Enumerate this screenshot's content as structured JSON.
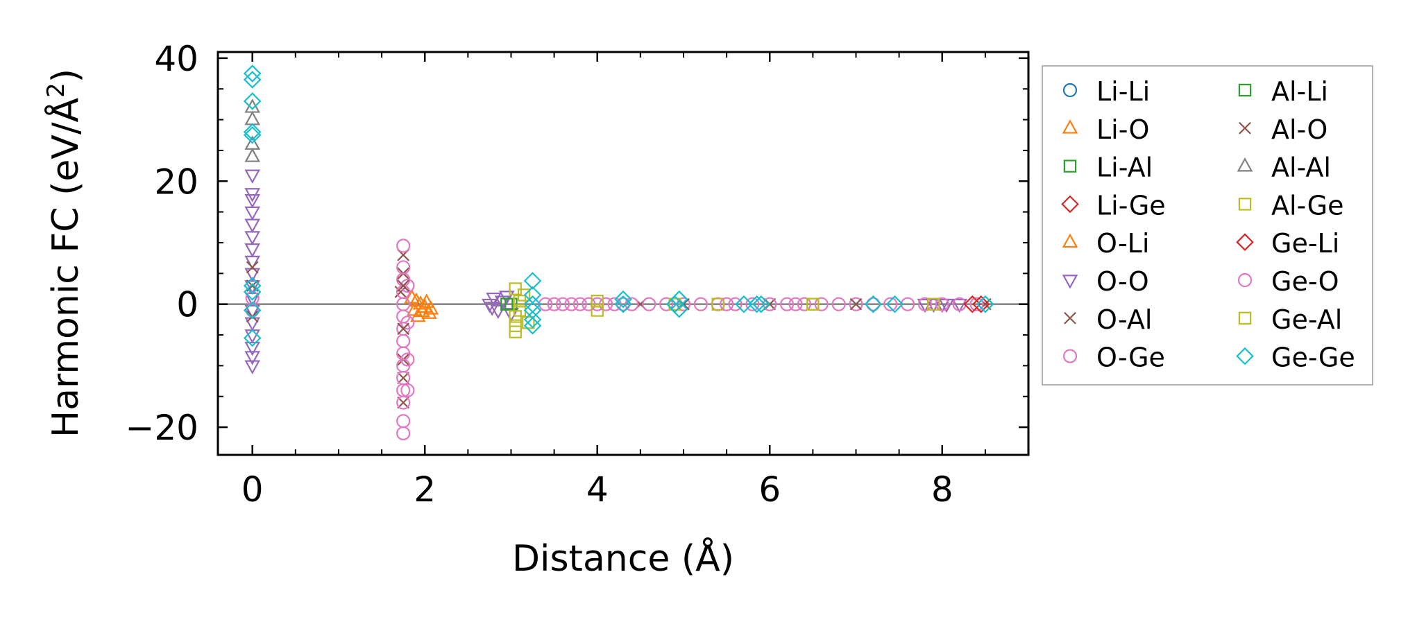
{
  "chart_data": {
    "type": "scatter",
    "xlabel": "Distance (Å)",
    "ylabel_main": "Harmonic FC (eV/Å",
    "ylabel_sup": "2",
    "ylabel_close": ")",
    "xlim": [
      -0.4,
      9.0
    ],
    "ylim": [
      -24.5,
      41
    ],
    "x_ticks": [
      0,
      2,
      4,
      6,
      8
    ],
    "x_tick_labels": [
      "0",
      "2",
      "4",
      "6",
      "8"
    ],
    "y_ticks": [
      -20,
      0,
      20,
      40
    ],
    "y_tick_labels": [
      "−20",
      "0",
      "20",
      "40"
    ],
    "zero_line": true,
    "grid": false,
    "legend_position": "outside-right",
    "legend_columns": 2,
    "series": [
      {
        "name": "Li-Li",
        "marker": "circle",
        "color": "#1f77b4",
        "points": []
      },
      {
        "name": "Li-O",
        "marker": "triangle-up",
        "color": "#ff7f0e",
        "points": []
      },
      {
        "name": "Li-Al",
        "marker": "square",
        "color": "#2ca02c",
        "points": []
      },
      {
        "name": "Li-Ge",
        "marker": "diamond",
        "color": "#d62728",
        "points": []
      },
      {
        "name": "O-Li",
        "marker": "triangle-up",
        "color": "#ff7f0e",
        "points": [
          [
            1.85,
            1.0
          ],
          [
            1.9,
            0.5
          ],
          [
            1.95,
            0
          ],
          [
            2.0,
            -0.5
          ],
          [
            2.05,
            -1.5
          ],
          [
            1.88,
            -1.0
          ],
          [
            1.92,
            -2.0
          ],
          [
            2.02,
            0.3
          ],
          [
            1.97,
            -1.2
          ],
          [
            2.07,
            -0.8
          ]
        ]
      },
      {
        "name": "O-O",
        "marker": "triangle-down",
        "color": "#9467bd",
        "points": [
          [
            0,
            -10
          ],
          [
            0,
            -8.5
          ],
          [
            0,
            -7
          ],
          [
            0,
            -5
          ],
          [
            0,
            -3
          ],
          [
            0,
            -1
          ],
          [
            0,
            1
          ],
          [
            0,
            3
          ],
          [
            0,
            5
          ],
          [
            0,
            7
          ],
          [
            0,
            9
          ],
          [
            0,
            11
          ],
          [
            0,
            13
          ],
          [
            0,
            15
          ],
          [
            0,
            17
          ],
          [
            0,
            18
          ],
          [
            0,
            21
          ],
          [
            2.75,
            0
          ],
          [
            2.8,
            1.0
          ],
          [
            2.85,
            -1.0
          ],
          [
            2.9,
            0.5
          ],
          [
            2.78,
            -0.5
          ],
          [
            2.95,
            1.3
          ],
          [
            3.0,
            -1.5
          ],
          [
            7.8,
            0
          ],
          [
            7.9,
            0
          ],
          [
            8.0,
            0
          ],
          [
            8.05,
            0
          ],
          [
            8.2,
            0
          ]
        ]
      },
      {
        "name": "O-Al",
        "marker": "x",
        "color": "#8c564b",
        "points": [
          [
            0,
            -2
          ],
          [
            0,
            3
          ],
          [
            0,
            6
          ],
          [
            1.75,
            8
          ],
          [
            1.75,
            5
          ],
          [
            1.75,
            -9
          ],
          [
            1.75,
            -12
          ],
          [
            1.75,
            -16
          ],
          [
            1.72,
            2
          ],
          [
            4.5,
            0
          ],
          [
            6.0,
            0
          ],
          [
            8.5,
            0
          ]
        ]
      },
      {
        "name": "O-Ge",
        "marker": "circle",
        "color": "#e377c2",
        "points": [
          [
            0,
            -1
          ],
          [
            0,
            1
          ],
          [
            1.75,
            -21
          ],
          [
            1.75,
            -19
          ],
          [
            1.75,
            -16
          ],
          [
            1.75,
            -14
          ],
          [
            1.75,
            -12
          ],
          [
            1.75,
            -10
          ],
          [
            1.75,
            -8
          ],
          [
            1.75,
            -6
          ],
          [
            1.75,
            -4
          ],
          [
            1.75,
            -2
          ],
          [
            1.75,
            0
          ],
          [
            1.75,
            2
          ],
          [
            1.75,
            4
          ],
          [
            1.75,
            6
          ],
          [
            1.75,
            9.5
          ],
          [
            1.8,
            -14
          ],
          [
            1.8,
            -9
          ],
          [
            1.8,
            -3
          ],
          [
            1.8,
            3
          ],
          [
            3.4,
            0
          ],
          [
            3.5,
            0
          ],
          [
            3.6,
            0
          ],
          [
            3.7,
            0
          ],
          [
            3.8,
            0
          ],
          [
            3.9,
            0
          ],
          [
            4.0,
            0
          ],
          [
            4.1,
            0
          ],
          [
            4.2,
            0
          ],
          [
            4.4,
            0
          ],
          [
            4.6,
            0
          ],
          [
            4.8,
            0
          ],
          [
            5.0,
            0
          ],
          [
            5.2,
            0
          ],
          [
            5.4,
            0
          ],
          [
            5.6,
            0
          ],
          [
            5.8,
            0
          ],
          [
            6.0,
            0
          ],
          [
            6.2,
            0
          ],
          [
            6.4,
            0
          ],
          [
            6.6,
            0
          ],
          [
            6.8,
            0
          ],
          [
            7.0,
            0
          ],
          [
            7.2,
            0
          ],
          [
            7.4,
            0
          ],
          [
            7.6,
            0
          ],
          [
            7.8,
            0
          ],
          [
            8.0,
            0
          ],
          [
            8.2,
            0
          ],
          [
            8.4,
            0
          ]
        ]
      },
      {
        "name": "Al-Li",
        "marker": "square",
        "color": "#2ca02c",
        "points": [
          [
            2.95,
            0
          ],
          [
            3.0,
            0
          ]
        ]
      },
      {
        "name": "Al-O",
        "marker": "x",
        "color": "#8c564b",
        "points": [
          [
            1.75,
            -4
          ],
          [
            1.75,
            3
          ],
          [
            5.0,
            0
          ],
          [
            7.0,
            0
          ]
        ]
      },
      {
        "name": "Al-Al",
        "marker": "triangle-up",
        "color": "#7f7f7f",
        "points": [
          [
            0,
            24
          ],
          [
            0,
            26
          ],
          [
            0,
            30
          ],
          [
            0,
            32
          ]
        ]
      },
      {
        "name": "Al-Ge",
        "marker": "square",
        "color": "#bcbd22",
        "points": [
          [
            3.05,
            -4.5
          ],
          [
            3.05,
            -3.5
          ],
          [
            3.05,
            -2
          ],
          [
            3.05,
            2.5
          ],
          [
            3.1,
            -1
          ],
          [
            3.1,
            0.5
          ],
          [
            3.15,
            1.5
          ],
          [
            4.0,
            -1
          ],
          [
            4.0,
            0.5
          ],
          [
            4.9,
            0
          ],
          [
            5.4,
            0
          ],
          [
            6.5,
            0
          ],
          [
            7.9,
            0
          ]
        ]
      },
      {
        "name": "Ge-Li",
        "marker": "diamond",
        "color": "#d62728",
        "points": [
          [
            8.35,
            0
          ],
          [
            8.45,
            0
          ]
        ]
      },
      {
        "name": "Ge-O",
        "marker": "circle",
        "color": "#e377c2",
        "points": [
          [
            4.3,
            0
          ],
          [
            5.5,
            0
          ],
          [
            6.3,
            0
          ]
        ]
      },
      {
        "name": "Ge-Al",
        "marker": "square",
        "color": "#bcbd22",
        "points": [
          [
            3.2,
            -3
          ],
          [
            6.5,
            0
          ]
        ]
      },
      {
        "name": "Ge-Ge",
        "marker": "diamond",
        "color": "#17becf",
        "points": [
          [
            0,
            37.5
          ],
          [
            0,
            36.5
          ],
          [
            0,
            33
          ],
          [
            0,
            28
          ],
          [
            0,
            27.5
          ],
          [
            0,
            3
          ],
          [
            0,
            2
          ],
          [
            0,
            -1
          ],
          [
            0,
            -5.5
          ],
          [
            3.25,
            3.8
          ],
          [
            3.25,
            1.5
          ],
          [
            3.25,
            0
          ],
          [
            3.25,
            -1
          ],
          [
            3.25,
            -2.5
          ],
          [
            3.25,
            -3.5
          ],
          [
            4.3,
            0
          ],
          [
            4.3,
            0.8
          ],
          [
            4.9,
            0
          ],
          [
            4.95,
            -0.8
          ],
          [
            4.95,
            0.8
          ],
          [
            5.7,
            0
          ],
          [
            5.85,
            0
          ],
          [
            5.9,
            0
          ],
          [
            7.2,
            0
          ],
          [
            7.45,
            0
          ],
          [
            8.5,
            0
          ]
        ]
      }
    ]
  }
}
